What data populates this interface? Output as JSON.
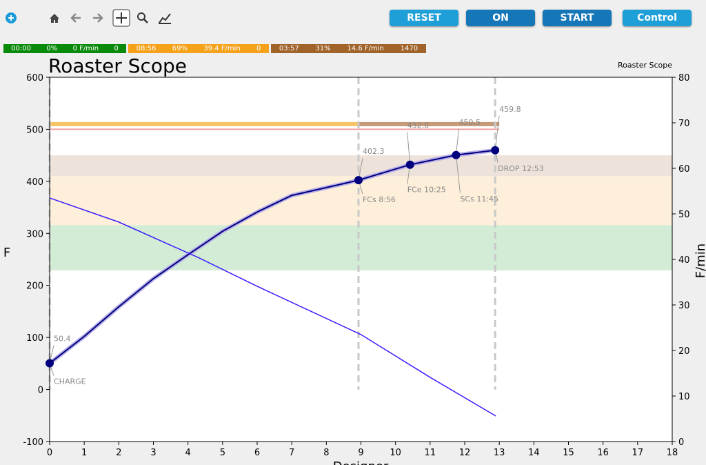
{
  "toolbar": {
    "buttons": [
      "RESET",
      "ON",
      "START",
      "Control"
    ]
  },
  "phases": [
    {
      "time": "00:00",
      "percent": "0%",
      "ror": "0 F/min",
      "value": "0",
      "color": "#0a8a0a"
    },
    {
      "time": "08:56",
      "percent": "69%",
      "ror": "39.4 F/min",
      "value": "0",
      "color": "#f5a21a"
    },
    {
      "time": "03:57",
      "percent": "31%",
      "ror": "14.6 F/min",
      "value": "1470",
      "color": "#a0632a"
    }
  ],
  "chart_data": {
    "type": "line",
    "title": "Roaster Scope",
    "subtitle": "Roaster Scope",
    "x_label": "Designer",
    "y_label": "F",
    "y2_label": "F/min",
    "xlim": [
      0,
      18
    ],
    "xticks": [
      0,
      1,
      2,
      3,
      4,
      5,
      6,
      7,
      8,
      9,
      10,
      11,
      12,
      13,
      14,
      15,
      16,
      17,
      18
    ],
    "ylim": [
      -100,
      600
    ],
    "yticks": [
      -100,
      0,
      100,
      200,
      300,
      400,
      500,
      600
    ],
    "y2lim": [
      0,
      80
    ],
    "y2ticks": [
      0,
      10,
      20,
      30,
      40,
      50,
      60,
      70,
      80
    ],
    "bands": [
      {
        "from": 229,
        "to": 316,
        "color": "#d3ecd6"
      },
      {
        "from": 316,
        "to": 410,
        "color": "#fdefd9"
      },
      {
        "from": 410,
        "to": 450,
        "color": "#ede3db"
      }
    ],
    "ref_lines": [
      {
        "value": 510,
        "from": 0,
        "to": 8.93,
        "color": "#f6c465"
      },
      {
        "value": 510,
        "from": 8.93,
        "to": 13,
        "color": "#c49a78"
      },
      {
        "value": 500,
        "from": 0,
        "to": 13,
        "color": "#f4a0a0"
      }
    ],
    "series": [
      {
        "color": "#00007f",
        "x": [
          0,
          1,
          2,
          3,
          4,
          5,
          6,
          7,
          8,
          8.93,
          10.42,
          11.75,
          12.88
        ],
        "values": [
          50.4,
          102,
          159,
          213,
          259,
          304,
          341,
          373,
          388,
          402.3,
          432.0,
          450.5,
          459.8
        ]
      },
      {
        "color": "#3a1bff",
        "axis": "y2",
        "x": [
          0,
          2,
          4.3,
          6,
          9,
          11,
          12.9
        ],
        "values": [
          53.5,
          48.2,
          40.4,
          34.1,
          23.5,
          14.1,
          5.6
        ]
      }
    ],
    "events": [
      {
        "label": "CHARGE",
        "x": 0,
        "value": 50.4,
        "value_label": "50.4"
      },
      {
        "label": "FCs 8:56",
        "x": 8.93,
        "value": 402.3,
        "value_label": "402.3"
      },
      {
        "label": "FCe 10:25",
        "x": 10.42,
        "value": 432.0,
        "value_label": "432.0"
      },
      {
        "label": "SCs 11:45",
        "x": 11.75,
        "value": 450.5,
        "value_label": "450.5"
      },
      {
        "label": "DROP 12:53",
        "x": 12.88,
        "value": 459.8,
        "value_label": "459.8"
      }
    ],
    "event_lines": [
      0,
      8.93,
      12.88
    ],
    "marker_color": "#00007f"
  }
}
